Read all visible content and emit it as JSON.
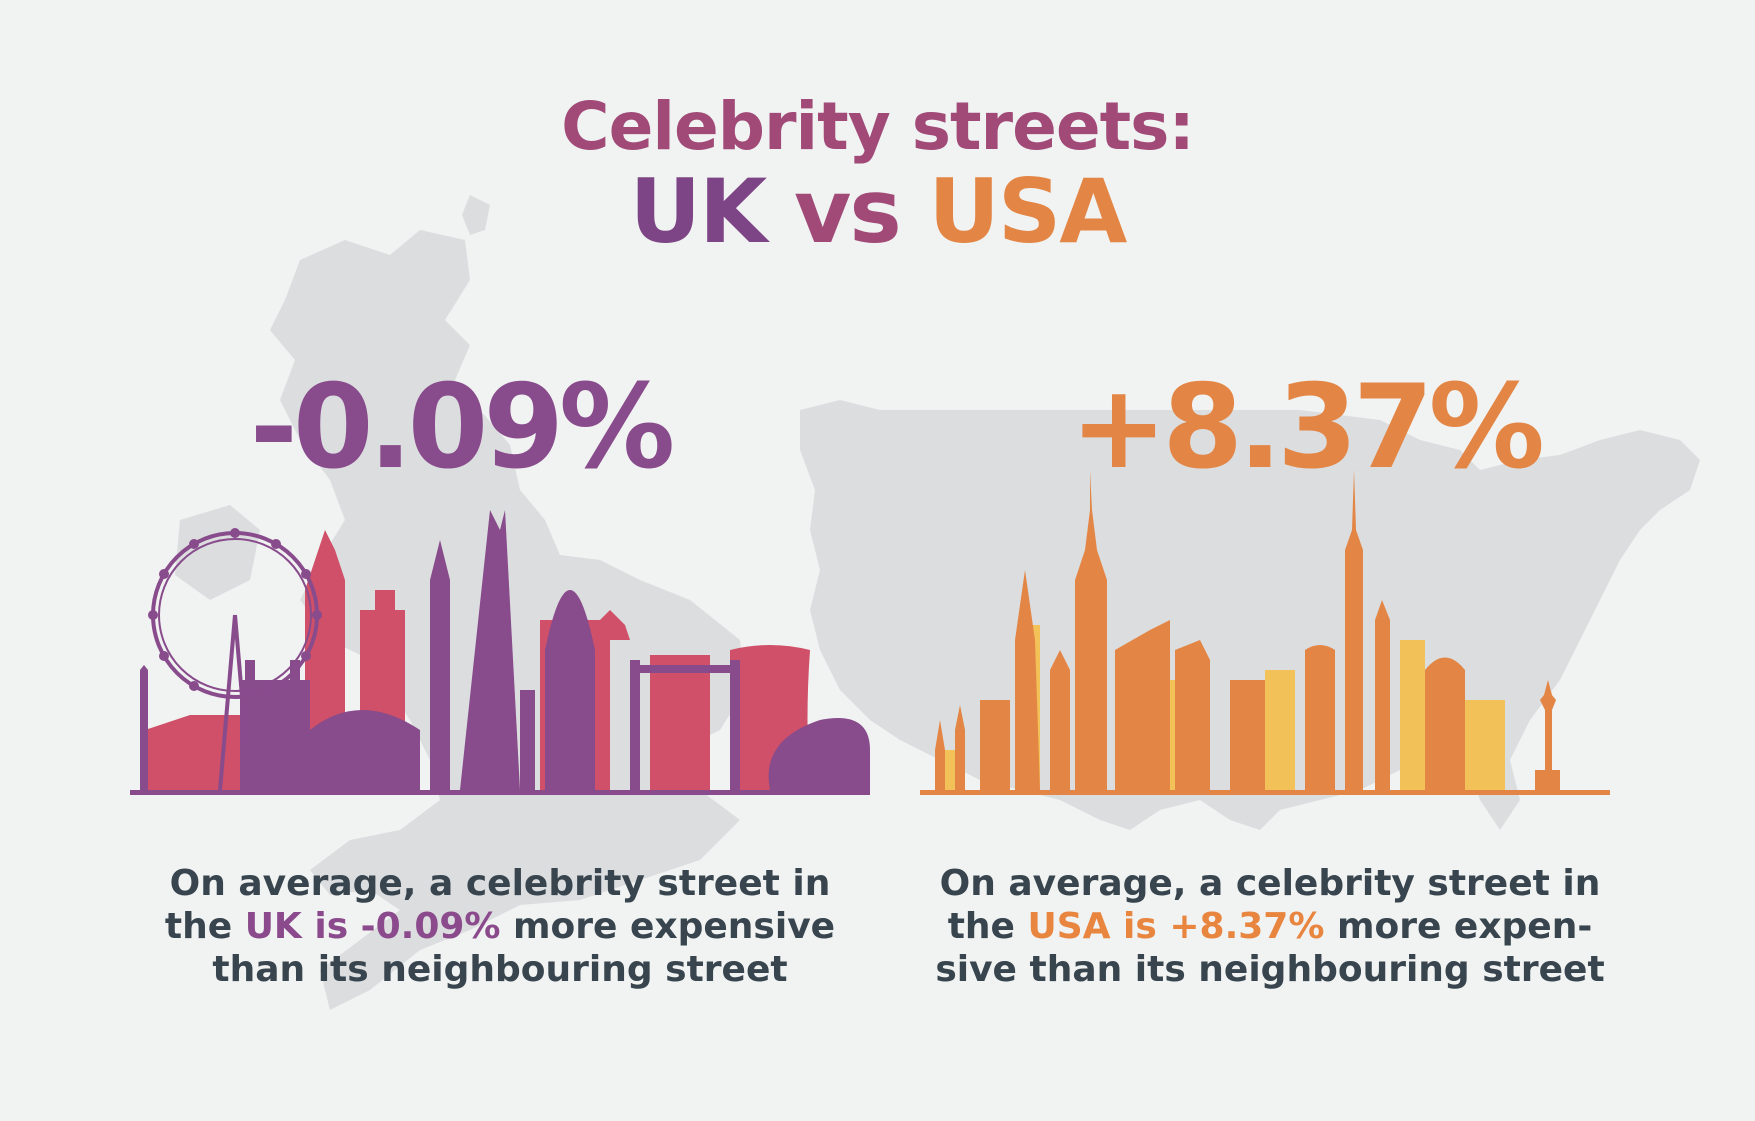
{
  "title": {
    "line1": "Celebrity streets:",
    "uk": "UK",
    "vs": "vs",
    "usa": "USA"
  },
  "uk": {
    "stat": "-0.09%",
    "desc_before": "On average, a celebrity street in the ",
    "desc_highlight": "UK is -0.09%",
    "desc_after": " more expensive than its neighbouring street"
  },
  "usa": {
    "stat": "+8.37%",
    "desc_before": "On average, a celebrity street in the ",
    "desc_highlight": "USA is +8.37%",
    "desc_after": " more expen- sive than its neighbouring street"
  },
  "colors": {
    "background": "#f1f2f2",
    "map": "#dcdddf",
    "uk_purple": "#884b8c",
    "uk_pink": "#cf5068",
    "usa_orange": "#e38645",
    "usa_yellow": "#f2c259",
    "text": "#38454e"
  },
  "icons": {
    "uk_map": "uk-map-silhouette-icon",
    "usa_map": "usa-map-silhouette-icon",
    "london": "london-skyline-icon",
    "nyc": "new-york-skyline-icon"
  }
}
